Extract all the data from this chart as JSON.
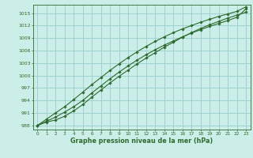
{
  "x": [
    0,
    1,
    2,
    3,
    4,
    5,
    6,
    7,
    8,
    9,
    10,
    11,
    12,
    13,
    14,
    15,
    16,
    17,
    18,
    19,
    20,
    21,
    22,
    23
  ],
  "line1": [
    988,
    988.8,
    989.3,
    990.2,
    991.5,
    993.0,
    994.8,
    996.5,
    998.2,
    999.8,
    1001.3,
    1002.8,
    1004.2,
    1005.5,
    1006.8,
    1008.0,
    1009.2,
    1010.3,
    1011.3,
    1012.2,
    1013.0,
    1013.8,
    1014.5,
    1015.2
  ],
  "line2": [
    988,
    989.5,
    991.0,
    992.5,
    994.2,
    996.0,
    997.8,
    999.5,
    1001.2,
    1002.8,
    1004.3,
    1005.7,
    1007.0,
    1008.2,
    1009.3,
    1010.3,
    1011.2,
    1012.0,
    1012.8,
    1013.5,
    1014.2,
    1014.8,
    1015.4,
    1016.5
  ],
  "line3": [
    988,
    989.0,
    990.0,
    991.2,
    992.5,
    994.0,
    995.8,
    997.5,
    999.2,
    1000.8,
    1002.3,
    1003.7,
    1005.0,
    1006.2,
    1007.3,
    1008.3,
    1009.3,
    1010.2,
    1011.0,
    1011.8,
    1012.5,
    1013.2,
    1014.0,
    1016.0
  ],
  "line_color": "#2d6a2d",
  "bg_color": "#cceee8",
  "grid_color": "#99cccc",
  "xlabel": "Graphe pression niveau de la mer (hPa)",
  "ylim": [
    987,
    1017
  ],
  "xlim": [
    -0.5,
    23.5
  ],
  "yticks": [
    988,
    991,
    994,
    997,
    1000,
    1003,
    1006,
    1009,
    1012,
    1015
  ],
  "xticks": [
    0,
    1,
    2,
    3,
    4,
    5,
    6,
    7,
    8,
    9,
    10,
    11,
    12,
    13,
    14,
    15,
    16,
    17,
    18,
    19,
    20,
    21,
    22,
    23
  ]
}
